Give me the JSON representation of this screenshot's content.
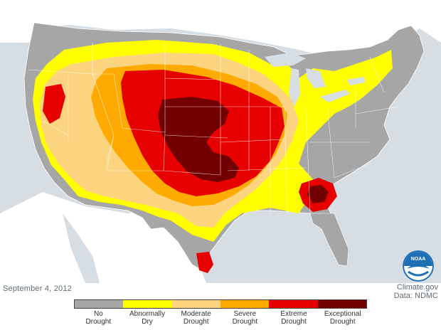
{
  "date_label": "September 4, 2012",
  "credit_line1": "Climate.gov",
  "credit_line2": "Data: NDMC",
  "logo_text": "NOAA",
  "legend": [
    {
      "line1": "No",
      "line2": "Drought",
      "color": "#a6a6a6"
    },
    {
      "line1": "Abnormally",
      "line2": "Dry",
      "color": "#ffff00"
    },
    {
      "line1": "Moderate",
      "line2": "Drought",
      "color": "#fcd37f"
    },
    {
      "line1": "Severe",
      "line2": "Drought",
      "color": "#ffaa00"
    },
    {
      "line1": "Extreme",
      "line2": "Drought",
      "color": "#e60000"
    },
    {
      "line1": "Exceptional",
      "line2": "Drought",
      "color": "#730000"
    }
  ],
  "colors": {
    "ocean": "#d6dde3",
    "land_outside": "#ffffff",
    "state_border": "#ffffff"
  }
}
